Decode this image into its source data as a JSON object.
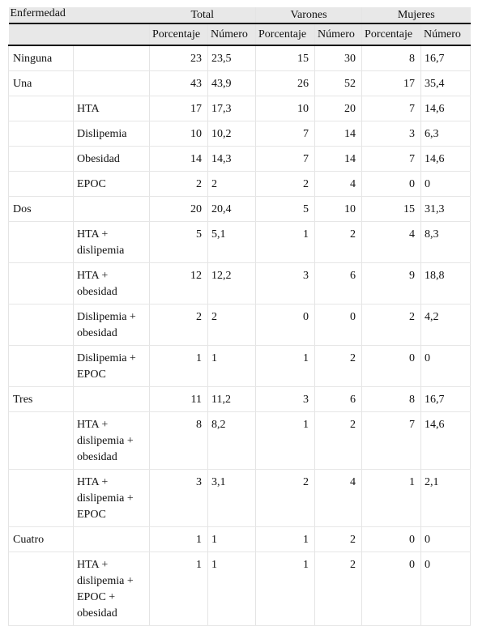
{
  "header": {
    "enfermedad": "Enfermedad",
    "groups": [
      "Total",
      "Varones",
      "Mujeres"
    ],
    "porcentaje": "Porcentaje",
    "numero": "Número"
  },
  "rows": [
    {
      "cat": "Ninguna",
      "sub": "",
      "tp": "23",
      "tn": "23,5",
      "vp": "15",
      "vn": "30",
      "mp": "8",
      "mn": "16,7"
    },
    {
      "cat": "Una",
      "sub": "",
      "tp": "43",
      "tn": "43,9",
      "vp": "26",
      "vn": "52",
      "mp": "17",
      "mn": "35,4"
    },
    {
      "cat": "",
      "sub": "HTA",
      "tp": "17",
      "tn": "17,3",
      "vp": "10",
      "vn": "20",
      "mp": "7",
      "mn": "14,6"
    },
    {
      "cat": "",
      "sub": "Dislipemia",
      "tp": "10",
      "tn": "10,2",
      "vp": "7",
      "vn": "14",
      "mp": "3",
      "mn": "6,3"
    },
    {
      "cat": "",
      "sub": "Obesidad",
      "tp": "14",
      "tn": "14,3",
      "vp": "7",
      "vn": "14",
      "mp": "7",
      "mn": "14,6"
    },
    {
      "cat": "",
      "sub": "EPOC",
      "tp": "2",
      "tn": "2",
      "vp": "2",
      "vn": "4",
      "mp": "0",
      "mn": "0"
    },
    {
      "cat": "Dos",
      "sub": "",
      "tp": "20",
      "tn": "20,4",
      "vp": "5",
      "vn": "10",
      "mp": "15",
      "mn": "31,3"
    },
    {
      "cat": "",
      "sub": "HTA + dislipemia",
      "tp": "5",
      "tn": "5,1",
      "vp": "1",
      "vn": "2",
      "mp": "4",
      "mn": "8,3"
    },
    {
      "cat": "",
      "sub": "HTA + obesidad",
      "tp": "12",
      "tn": "12,2",
      "vp": "3",
      "vn": "6",
      "mp": "9",
      "mn": "18,8"
    },
    {
      "cat": "",
      "sub": "Dislipemia + obesidad",
      "tp": "2",
      "tn": "2",
      "vp": "0",
      "vn": "0",
      "mp": "2",
      "mn": "4,2"
    },
    {
      "cat": "",
      "sub": "Dislipemia + EPOC",
      "tp": "1",
      "tn": "1",
      "vp": "1",
      "vn": "2",
      "mp": "0",
      "mn": "0"
    },
    {
      "cat": "Tres",
      "sub": "",
      "tp": "11",
      "tn": "11,2",
      "vp": "3",
      "vn": "6",
      "mp": "8",
      "mn": "16,7"
    },
    {
      "cat": "",
      "sub": "HTA + dislipemia + obesidad",
      "tp": "8",
      "tn": "8,2",
      "vp": "1",
      "vn": "2",
      "mp": "7",
      "mn": "14,6"
    },
    {
      "cat": "",
      "sub": "HTA + dislipemia + EPOC",
      "tp": "3",
      "tn": "3,1",
      "vp": "2",
      "vn": "4",
      "mp": "1",
      "mn": "2,1"
    },
    {
      "cat": "Cuatro",
      "sub": "",
      "tp": "1",
      "tn": "1",
      "vp": "1",
      "vn": "2",
      "mp": "0",
      "mn": "0"
    },
    {
      "cat": "",
      "sub": "HTA + dislipemia + EPOC + obesidad",
      "tp": "1",
      "tn": "1",
      "vp": "1",
      "vn": "2",
      "mp": "0",
      "mn": "0"
    }
  ]
}
